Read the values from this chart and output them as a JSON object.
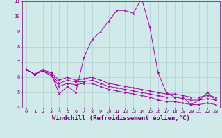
{
  "xlabel": "Windchill (Refroidissement éolien,°C)",
  "ylabel": "",
  "xlim": [
    -0.5,
    23.5
  ],
  "ylim": [
    4,
    11
  ],
  "yticks": [
    4,
    5,
    6,
    7,
    8,
    9,
    10,
    11
  ],
  "xticks": [
    0,
    1,
    2,
    3,
    4,
    5,
    6,
    7,
    8,
    9,
    10,
    11,
    12,
    13,
    14,
    15,
    16,
    17,
    18,
    19,
    20,
    21,
    22,
    23
  ],
  "bg_color": "#d0eaea",
  "grid_color": "#b0d0d0",
  "line_color": "#aa00aa",
  "lines": [
    {
      "x": [
        0,
        1,
        2,
        3,
        4,
        5,
        6,
        7,
        8,
        9,
        10,
        11,
        12,
        13,
        14,
        15,
        16,
        17,
        18,
        19,
        20,
        21,
        22,
        23
      ],
      "y": [
        6.5,
        6.2,
        6.5,
        6.3,
        4.9,
        5.4,
        5.0,
        7.3,
        8.5,
        9.0,
        9.7,
        10.4,
        10.4,
        10.2,
        11.2,
        9.3,
        6.3,
        5.0,
        4.7,
        4.7,
        4.2,
        4.5,
        5.0,
        4.5
      ]
    },
    {
      "x": [
        0,
        1,
        2,
        3,
        4,
        5,
        6,
        7,
        8,
        9,
        10,
        11,
        12,
        13,
        14,
        15,
        16,
        17,
        18,
        19,
        20,
        21,
        22,
        23
      ],
      "y": [
        6.5,
        6.2,
        6.4,
        6.3,
        5.8,
        6.0,
        5.8,
        5.9,
        6.0,
        5.8,
        5.6,
        5.5,
        5.4,
        5.3,
        5.2,
        5.1,
        5.0,
        4.9,
        4.9,
        4.8,
        4.7,
        4.7,
        4.8,
        4.7
      ]
    },
    {
      "x": [
        0,
        1,
        2,
        3,
        4,
        5,
        6,
        7,
        8,
        9,
        10,
        11,
        12,
        13,
        14,
        15,
        16,
        17,
        18,
        19,
        20,
        21,
        22,
        23
      ],
      "y": [
        6.5,
        6.2,
        6.4,
        6.2,
        5.6,
        5.8,
        5.7,
        5.7,
        5.8,
        5.6,
        5.4,
        5.3,
        5.2,
        5.1,
        5.0,
        4.9,
        4.8,
        4.7,
        4.7,
        4.6,
        4.5,
        4.5,
        4.6,
        4.5
      ]
    },
    {
      "x": [
        0,
        1,
        2,
        3,
        4,
        5,
        6,
        7,
        8,
        9,
        10,
        11,
        12,
        13,
        14,
        15,
        16,
        17,
        18,
        19,
        20,
        21,
        22,
        23
      ],
      "y": [
        6.5,
        6.2,
        6.4,
        6.1,
        5.4,
        5.6,
        5.5,
        5.6,
        5.6,
        5.4,
        5.2,
        5.1,
        5.0,
        4.9,
        4.8,
        4.7,
        4.5,
        4.4,
        4.4,
        4.3,
        4.2,
        4.2,
        4.3,
        4.2
      ]
    }
  ],
  "font_color": "#770077",
  "tick_fontsize": 5,
  "xlabel_fontsize": 6.5
}
